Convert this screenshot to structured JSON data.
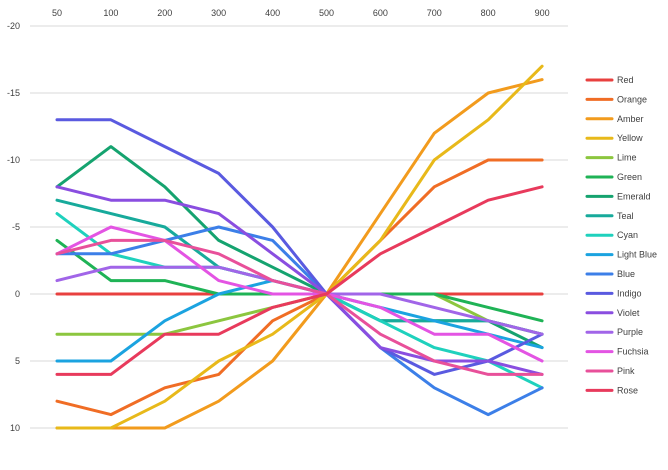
{
  "chart_data": {
    "type": "line",
    "title": "",
    "xlabel": "",
    "ylabel": "",
    "x": [
      50,
      100,
      200,
      300,
      400,
      500,
      600,
      700,
      800,
      900
    ],
    "x_tick_labels": [
      "50",
      "100",
      "200",
      "300",
      "400",
      "500",
      "600",
      "700",
      "800",
      "900"
    ],
    "y_tick_labels": [
      "-20",
      "-15",
      "-10",
      "-5",
      "0",
      "5",
      "10"
    ],
    "y_ticks": [
      -20,
      -15,
      -10,
      -5,
      0,
      5,
      10
    ],
    "ylim": [
      -20,
      10
    ],
    "y_reversed": true,
    "x_axis_position": "top",
    "grid": "horizontal",
    "legend_position": "right",
    "series": [
      {
        "name": "Red",
        "color": "#e8403f",
        "values": [
          0,
          0,
          0,
          0,
          0,
          0,
          0,
          0,
          0,
          0
        ]
      },
      {
        "name": "Orange",
        "color": "#f06d25",
        "values": [
          8,
          9,
          7,
          6,
          2,
          0,
          -4,
          -8,
          -10,
          -10
        ]
      },
      {
        "name": "Amber",
        "color": "#f29b1d",
        "values": [
          10,
          10,
          10,
          8,
          5,
          0,
          -6,
          -12,
          -15,
          -16
        ]
      },
      {
        "name": "Yellow",
        "color": "#e8b91a",
        "values": [
          10,
          10,
          8,
          5,
          3,
          0,
          -4,
          -10,
          -13,
          -17
        ]
      },
      {
        "name": "Lime",
        "color": "#8cc63f",
        "values": [
          3,
          3,
          3,
          2,
          1,
          0,
          0,
          0,
          2,
          3
        ]
      },
      {
        "name": "Green",
        "color": "#1fb356",
        "values": [
          -4,
          -1,
          -1,
          0,
          0,
          0,
          0,
          0,
          1,
          2
        ]
      },
      {
        "name": "Emerald",
        "color": "#15a36f",
        "values": [
          -8,
          -11,
          -8,
          -4,
          -2,
          0,
          2,
          2,
          2,
          4
        ]
      },
      {
        "name": "Teal",
        "color": "#17aa9b",
        "values": [
          -7,
          -6,
          -5,
          -2,
          -1,
          0,
          2,
          2,
          2,
          3
        ]
      },
      {
        "name": "Cyan",
        "color": "#1fd1bd",
        "values": [
          -6,
          -3,
          -2,
          -2,
          -1,
          0,
          2,
          4,
          5,
          7
        ]
      },
      {
        "name": "Light Blue",
        "color": "#1ba3e0",
        "values": [
          5,
          5,
          2,
          0,
          -1,
          0,
          1,
          2,
          3,
          4
        ]
      },
      {
        "name": "Blue",
        "color": "#3c7fe8",
        "values": [
          -3,
          -3,
          -4,
          -5,
          -4,
          0,
          4,
          7,
          9,
          7
        ]
      },
      {
        "name": "Indigo",
        "color": "#5a5ae0",
        "values": [
          -13,
          -13,
          -11,
          -9,
          -5,
          0,
          4,
          6,
          5,
          3
        ]
      },
      {
        "name": "Violet",
        "color": "#8a4ee0",
        "values": [
          -8,
          -7,
          -7,
          -6,
          -3,
          0,
          4,
          5,
          5,
          6
        ]
      },
      {
        "name": "Purple",
        "color": "#a165e8",
        "values": [
          -1,
          -2,
          -2,
          -2,
          -1,
          0,
          0,
          1,
          2,
          3
        ]
      },
      {
        "name": "Fuchsia",
        "color": "#e354e3",
        "values": [
          -3,
          -5,
          -4,
          -1,
          0,
          0,
          1,
          3,
          3,
          5
        ]
      },
      {
        "name": "Pink",
        "color": "#e8509a",
        "values": [
          -3,
          -4,
          -4,
          -3,
          -1,
          0,
          3,
          5,
          6,
          6
        ]
      },
      {
        "name": "Rose",
        "color": "#e83a5c",
        "values": [
          6,
          6,
          3,
          3,
          1,
          0,
          -3,
          -5,
          -7,
          -8
        ]
      }
    ]
  }
}
